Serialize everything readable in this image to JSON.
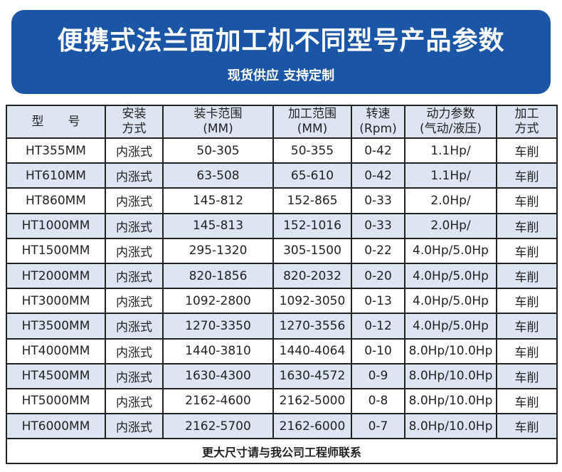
{
  "banner": {
    "title": "便携式法兰面加工机不同型号产品参数",
    "subtitle": "现货供应 支持定制",
    "color": "#1a55a6"
  },
  "table": {
    "headers": [
      "型　　号",
      "安装\n方式",
      "装卡范围\n(MM)",
      "加工范围\n(MM)",
      "转速\n(Rpm)",
      "动力参数\n(气动/液压)",
      "加工\n方式"
    ],
    "rows": [
      [
        "HT355MM",
        "内涨式",
        "50-305",
        "50-355",
        "0-42",
        "1.1Hp/",
        "车削"
      ],
      [
        "HT610MM",
        "内涨式",
        "63-508",
        "65-610",
        "0-42",
        "1.1Hp/",
        "车削"
      ],
      [
        "HT860MM",
        "内涨式",
        "145-812",
        "152-865",
        "0-33",
        "2.0Hp/",
        "车削"
      ],
      [
        "HT1000MM",
        "内涨式",
        "145-813",
        "152-1016",
        "0-33",
        "2.0Hp/",
        "车削"
      ],
      [
        "HT1500MM",
        "内涨式",
        "295-1320",
        "305-1500",
        "0-22",
        "4.0Hp/5.0Hp",
        "车削"
      ],
      [
        "HT2000MM",
        "内涨式",
        "820-1856",
        "820-2032",
        "0-20",
        "4.0Hp/5.0Hp",
        "车削"
      ],
      [
        "HT3000MM",
        "内涨式",
        "1092-2800",
        "1092-3050",
        "0-13",
        "4.0Hp/5.0Hp",
        "车削"
      ],
      [
        "HT3500MM",
        "内涨式",
        "1270-3350",
        "1270-3556",
        "0-12",
        "4.0Hp/5.0Hp",
        "车削"
      ],
      [
        "HT4000MM",
        "内涨式",
        "1440-3810",
        "1440-4064",
        "0-10",
        "8.0Hp/10.0Hp",
        "车削"
      ],
      [
        "HT4500MM",
        "内涨式",
        "1630-4300",
        "1630-4572",
        "0-9",
        "8.0Hp/10.0Hp",
        "车削"
      ],
      [
        "HT5000MM",
        "内涨式",
        "2162-4600",
        "2162-5000",
        "0-8",
        "8.0Hp/10.0Hp",
        "车削"
      ],
      [
        "HT6000MM",
        "内涨式",
        "2162-5700",
        "2162-6000",
        "0-7",
        "8.0Hp/10.0Hp",
        "车削"
      ]
    ],
    "footer": "更大尺寸请与我公司工程师联系",
    "stripe_color": "#dce5f2"
  }
}
